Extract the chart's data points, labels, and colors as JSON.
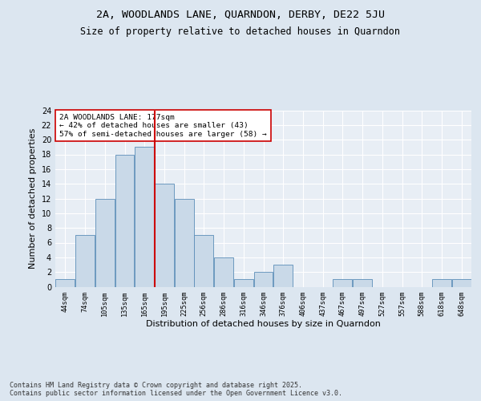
{
  "title1": "2A, WOODLANDS LANE, QUARNDON, DERBY, DE22 5JU",
  "title2": "Size of property relative to detached houses in Quarndon",
  "xlabel": "Distribution of detached houses by size in Quarndon",
  "ylabel": "Number of detached properties",
  "footer": "Contains HM Land Registry data © Crown copyright and database right 2025.\nContains public sector information licensed under the Open Government Licence v3.0.",
  "bin_labels": [
    "44sqm",
    "74sqm",
    "105sqm",
    "135sqm",
    "165sqm",
    "195sqm",
    "225sqm",
    "256sqm",
    "286sqm",
    "316sqm",
    "346sqm",
    "376sqm",
    "406sqm",
    "437sqm",
    "467sqm",
    "497sqm",
    "527sqm",
    "557sqm",
    "588sqm",
    "618sqm",
    "648sqm"
  ],
  "values": [
    1,
    7,
    12,
    18,
    19,
    14,
    12,
    7,
    4,
    1,
    2,
    3,
    0,
    0,
    1,
    1,
    0,
    0,
    0,
    1,
    1
  ],
  "bar_color": "#c9d9e8",
  "bar_edge_color": "#5b8db8",
  "red_line_x": 4.53,
  "annotation_text": "2A WOODLANDS LANE: 177sqm\n← 42% of detached houses are smaller (43)\n57% of semi-detached houses are larger (58) →",
  "annotation_box_color": "#ffffff",
  "annotation_box_edge": "#cc0000",
  "red_line_color": "#cc0000",
  "ylim": [
    0,
    24
  ],
  "yticks": [
    0,
    2,
    4,
    6,
    8,
    10,
    12,
    14,
    16,
    18,
    20,
    22,
    24
  ],
  "bg_color": "#dce6f0",
  "plot_bg_color": "#e8eef5",
  "grid_color": "#ffffff",
  "title_fontsize": 9.5,
  "subtitle_fontsize": 8.5
}
